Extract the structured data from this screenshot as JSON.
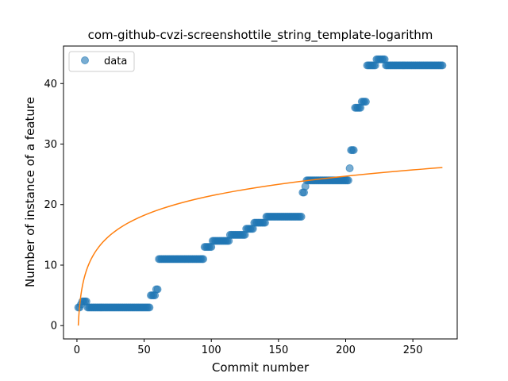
{
  "chart_data": {
    "type": "scatter",
    "title": "com-github-cvzi-screenshottile_string_template-logarithm",
    "xlabel": "Commit number",
    "ylabel": "Number of instance of a feature",
    "xlim": [
      -10,
      283
    ],
    "ylim": [
      -2.2,
      46.2
    ],
    "xticks": [
      0,
      50,
      100,
      150,
      200,
      250
    ],
    "yticks": [
      0,
      10,
      20,
      30,
      40
    ],
    "grid": false,
    "legend": {
      "position": "top-left",
      "entries": [
        "data"
      ]
    },
    "colors": {
      "data": "#1f77b4",
      "fit": "#ff7f0e"
    },
    "series": [
      {
        "name": "data",
        "kind": "scatter",
        "runs": [
          {
            "x_start": 1,
            "x_end": 2,
            "y": 3
          },
          {
            "x_start": 3,
            "x_end": 3,
            "y": 3.5
          },
          {
            "x_start": 4,
            "x_end": 7,
            "y": 4
          },
          {
            "x_start": 8,
            "x_end": 54,
            "y": 3
          },
          {
            "x_start": 55,
            "x_end": 58,
            "y": 5
          },
          {
            "x_start": 59,
            "x_end": 60,
            "y": 6
          },
          {
            "x_start": 61,
            "x_end": 94,
            "y": 11
          },
          {
            "x_start": 95,
            "x_end": 100,
            "y": 13
          },
          {
            "x_start": 101,
            "x_end": 113,
            "y": 14
          },
          {
            "x_start": 114,
            "x_end": 125,
            "y": 15
          },
          {
            "x_start": 126,
            "x_end": 131,
            "y": 16
          },
          {
            "x_start": 132,
            "x_end": 140,
            "y": 17
          },
          {
            "x_start": 141,
            "x_end": 167,
            "y": 18
          },
          {
            "x_start": 168,
            "x_end": 169,
            "y": 22
          },
          {
            "x_start": 170,
            "x_end": 170,
            "y": 23
          },
          {
            "x_start": 171,
            "x_end": 202,
            "y": 24
          },
          {
            "x_start": 203,
            "x_end": 203,
            "y": 26
          },
          {
            "x_start": 204,
            "x_end": 206,
            "y": 29
          },
          {
            "x_start": 207,
            "x_end": 211,
            "y": 36
          },
          {
            "x_start": 212,
            "x_end": 215,
            "y": 37
          },
          {
            "x_start": 216,
            "x_end": 222,
            "y": 43
          },
          {
            "x_start": 223,
            "x_end": 229,
            "y": 44
          },
          {
            "x_start": 230,
            "x_end": 272,
            "y": 43
          }
        ]
      },
      {
        "name": "",
        "kind": "line",
        "model": "logarithmic",
        "a": 4.66,
        "b": 0.0,
        "x_range": [
          1,
          272
        ]
      }
    ]
  }
}
